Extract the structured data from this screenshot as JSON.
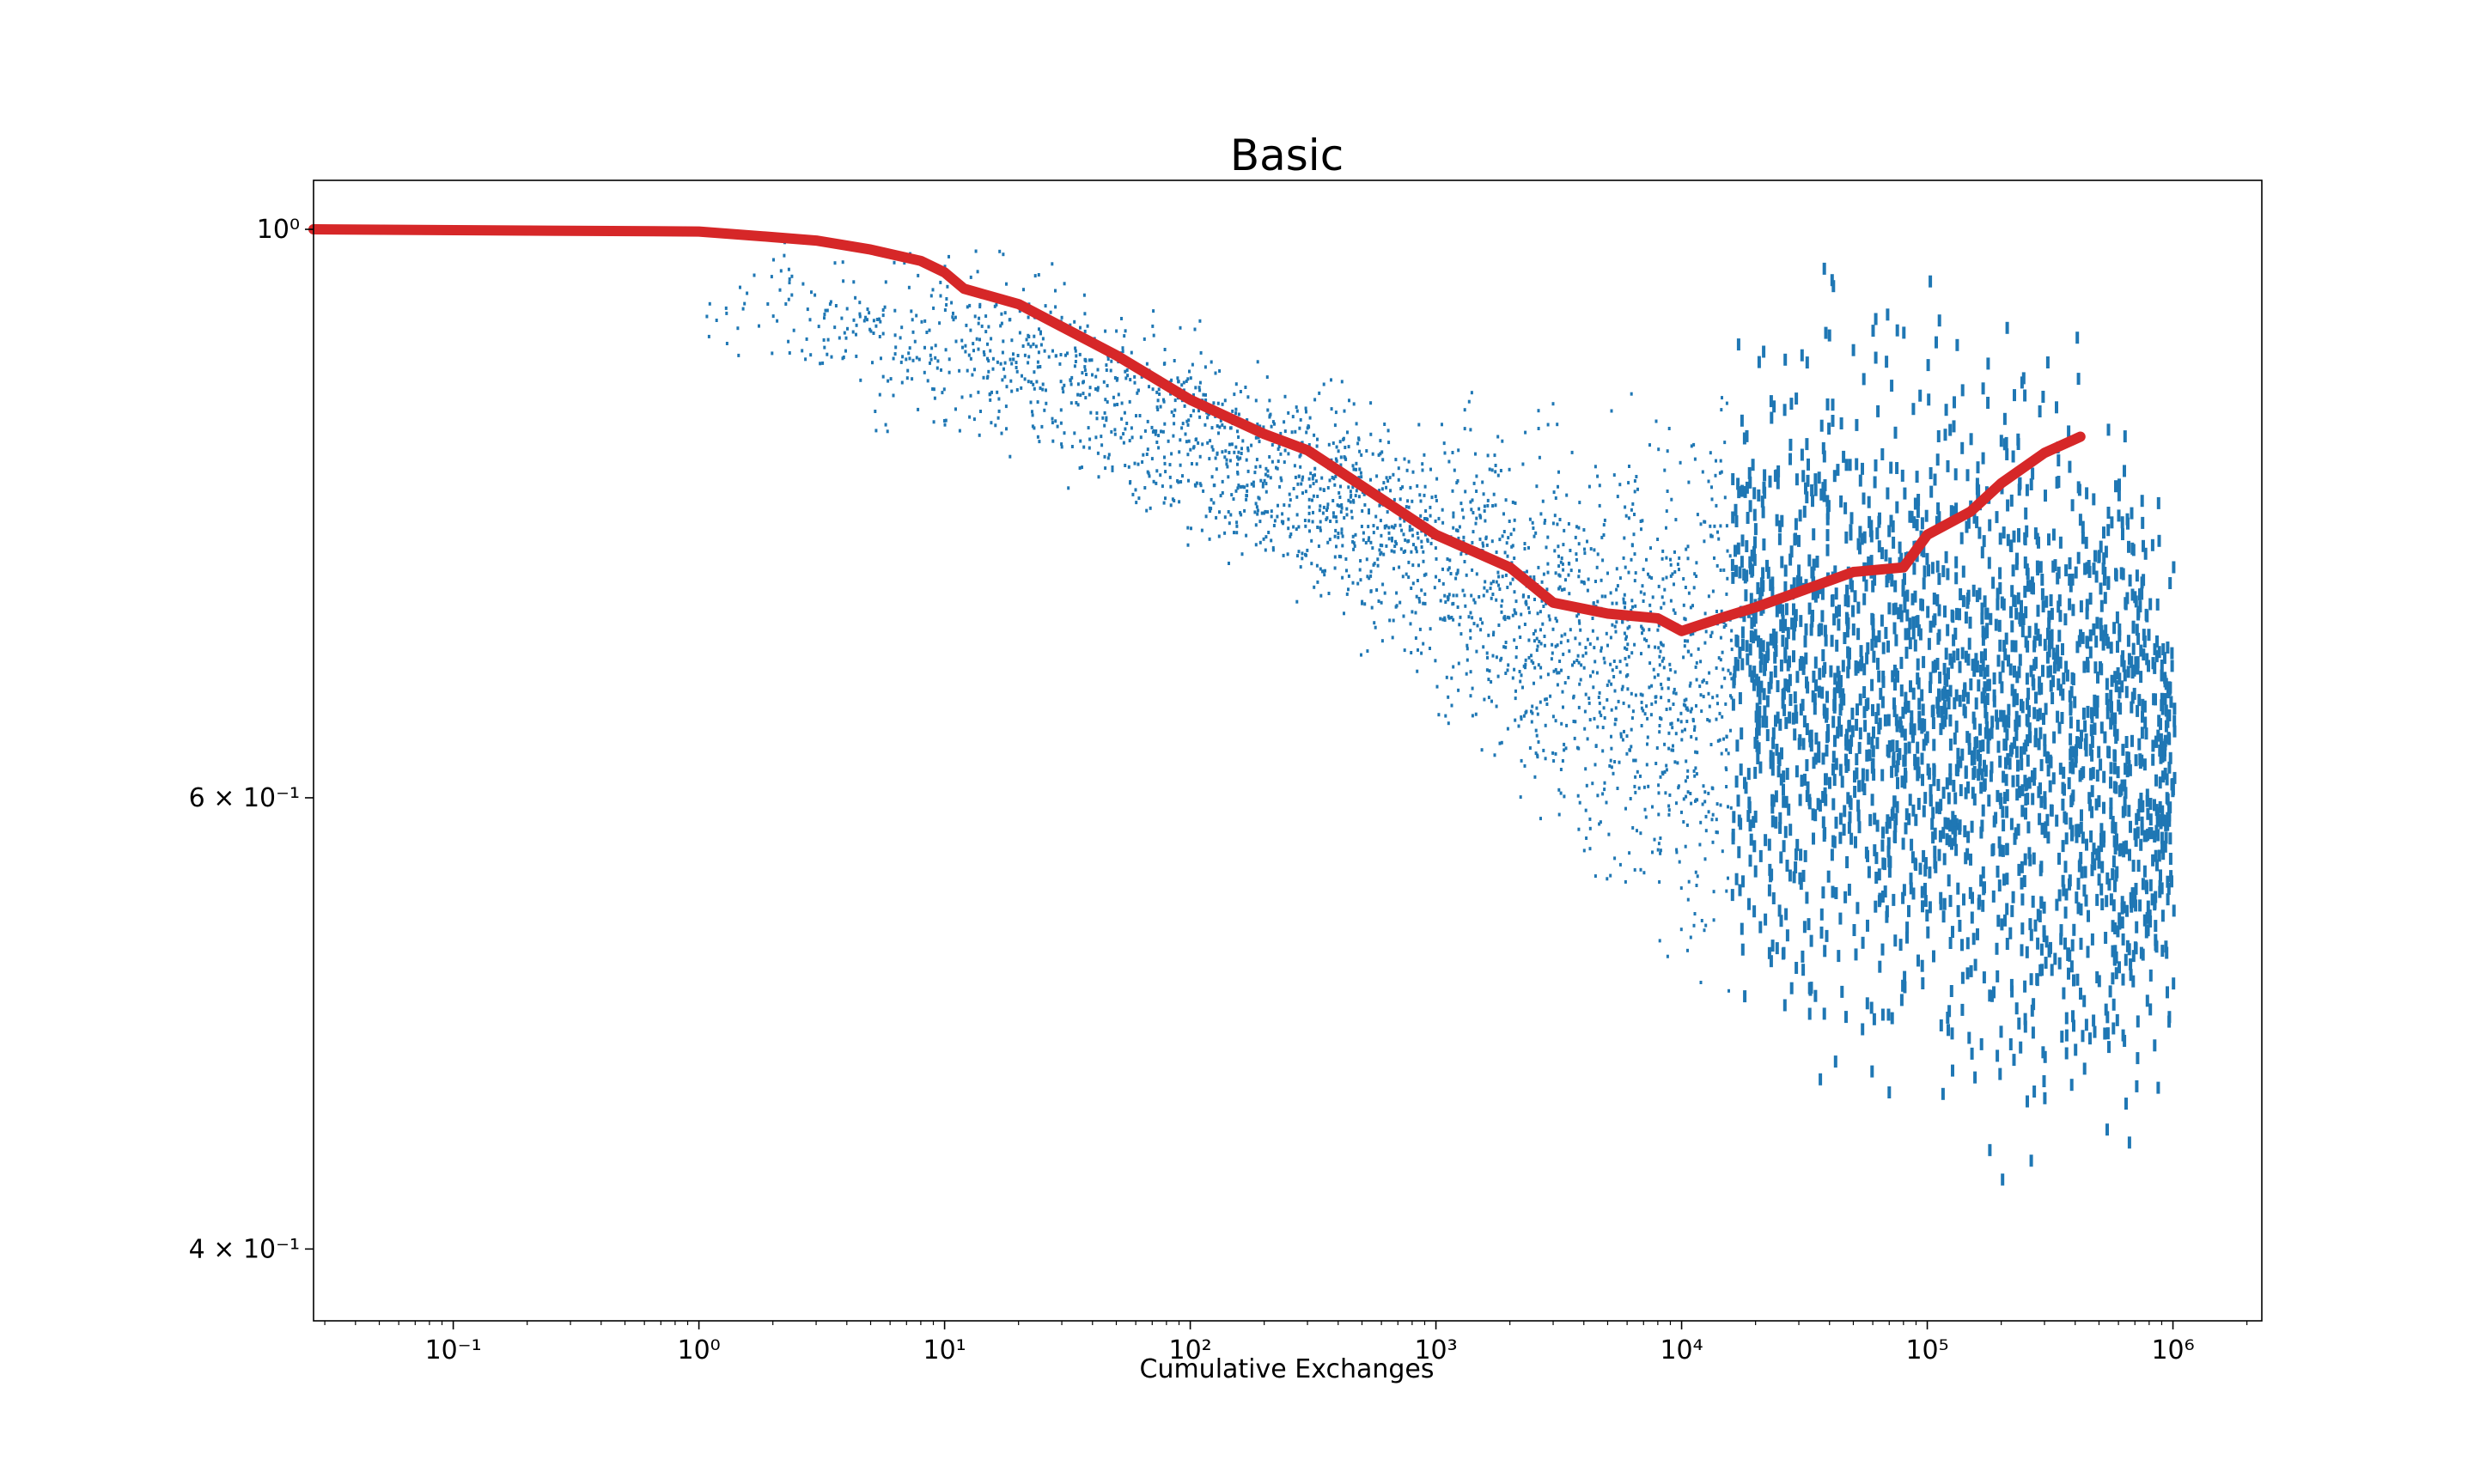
{
  "chart_data": {
    "type": "scatter",
    "title": "Basic",
    "xlabel": "Cumulative Exchanges",
    "ylabel": "",
    "xscale": "log",
    "yscale": "log",
    "xlim": [
      0.027,
      2300000
    ],
    "ylim": [
      0.375,
      1.045
    ],
    "grid": false,
    "legend": "none",
    "colors": {
      "scatter": "#1f77b4",
      "trend": "#d62728"
    },
    "x_ticks": [
      {
        "value": 0.1,
        "label": "10⁻¹"
      },
      {
        "value": 1,
        "label": "10⁰"
      },
      {
        "value": 10,
        "label": "10¹"
      },
      {
        "value": 100,
        "label": "10²"
      },
      {
        "value": 1000,
        "label": "10³"
      },
      {
        "value": 10000,
        "label": "10⁴"
      },
      {
        "value": 100000,
        "label": "10⁵"
      },
      {
        "value": 1000000,
        "label": "10⁶"
      }
    ],
    "y_ticks": [
      {
        "value": 1.0,
        "label": "10⁰"
      },
      {
        "value": 0.6,
        "label": "6 × 10⁻¹"
      },
      {
        "value": 0.4,
        "label": "4 × 10⁻¹"
      }
    ],
    "series": [
      {
        "kind": "scatter",
        "spread_envelope": [
          {
            "x": 1,
            "low": 0.86,
            "high": 1.0
          },
          {
            "x": 2,
            "low": 0.88,
            "high": 1.0
          },
          {
            "x": 3,
            "low": 0.86,
            "high": 1.0
          },
          {
            "x": 5,
            "low": 0.81,
            "high": 1.0
          },
          {
            "x": 10,
            "low": 0.81,
            "high": 1.0
          },
          {
            "x": 20,
            "low": 0.8,
            "high": 1.0
          },
          {
            "x": 50,
            "low": 0.76,
            "high": 0.97
          },
          {
            "x": 100,
            "low": 0.73,
            "high": 0.93
          },
          {
            "x": 300,
            "low": 0.7,
            "high": 0.9
          },
          {
            "x": 1000,
            "low": 0.62,
            "high": 0.88
          },
          {
            "x": 3000,
            "low": 0.56,
            "high": 0.88
          },
          {
            "x": 10000,
            "low": 0.48,
            "high": 0.9
          },
          {
            "x": 20000,
            "low": 0.48,
            "high": 0.95
          },
          {
            "x": 30000,
            "low": 0.45,
            "high": 1.0
          },
          {
            "x": 100000,
            "low": 0.42,
            "high": 1.0
          },
          {
            "x": 300000,
            "low": 0.4,
            "high": 1.0
          },
          {
            "x": 600000,
            "low": 0.42,
            "high": 0.9
          },
          {
            "x": 1000000,
            "low": 0.46,
            "high": 0.82
          }
        ]
      },
      {
        "kind": "line",
        "x": [
          0.027,
          1,
          2,
          3,
          5,
          8,
          10,
          12,
          20,
          50,
          100,
          200,
          300,
          500,
          1000,
          2000,
          3000,
          5000,
          8000,
          10000,
          15000,
          20000,
          30000,
          50000,
          80000,
          100000,
          150000,
          200000,
          300000,
          420000
        ],
        "y": [
          1.0,
          0.998,
          0.993,
          0.99,
          0.982,
          0.972,
          0.962,
          0.948,
          0.935,
          0.893,
          0.858,
          0.832,
          0.82,
          0.794,
          0.76,
          0.738,
          0.715,
          0.708,
          0.705,
          0.697,
          0.706,
          0.712,
          0.722,
          0.735,
          0.738,
          0.76,
          0.776,
          0.796,
          0.818,
          0.83
        ]
      }
    ]
  }
}
